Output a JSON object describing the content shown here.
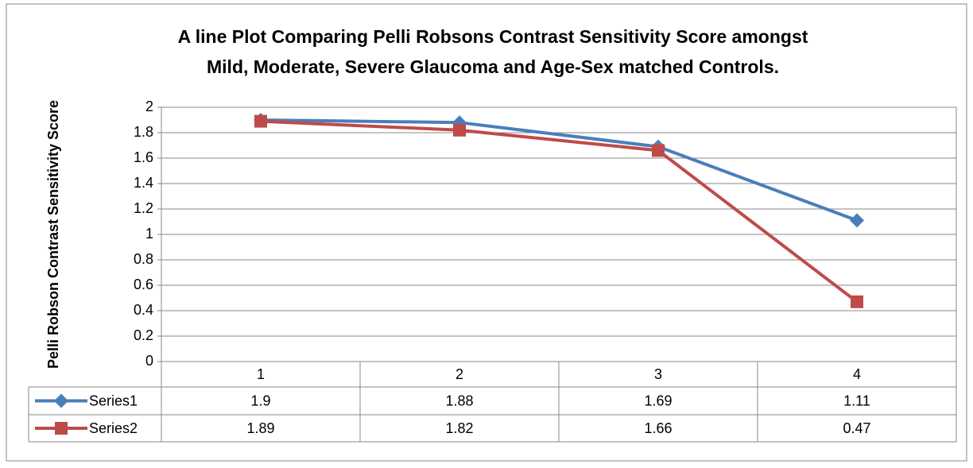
{
  "chart_data": {
    "type": "line",
    "title": [
      "A line Plot Comparing Pelli Robsons Contrast Sensitivity Score amongst",
      "Mild, Moderate, Severe Glaucoma and Age-Sex matched Controls."
    ],
    "y_label": "Pelli Robson Contrast Sensitivity Score",
    "categories": [
      1,
      2,
      3,
      4
    ],
    "series": [
      {
        "name": "Series1",
        "color": "#4a7ebb",
        "marker": "diamond",
        "values": [
          1.9,
          1.88,
          1.69,
          1.11
        ]
      },
      {
        "name": "Series2",
        "color": "#be4b48",
        "marker": "square",
        "values": [
          1.89,
          1.82,
          1.66,
          0.47
        ]
      }
    ],
    "ylim": [
      0,
      2
    ],
    "yticks": [
      0,
      0.2,
      0.4,
      0.6,
      0.8,
      1,
      1.2,
      1.4,
      1.6,
      1.8,
      2
    ],
    "grid": true,
    "data_table": true
  }
}
